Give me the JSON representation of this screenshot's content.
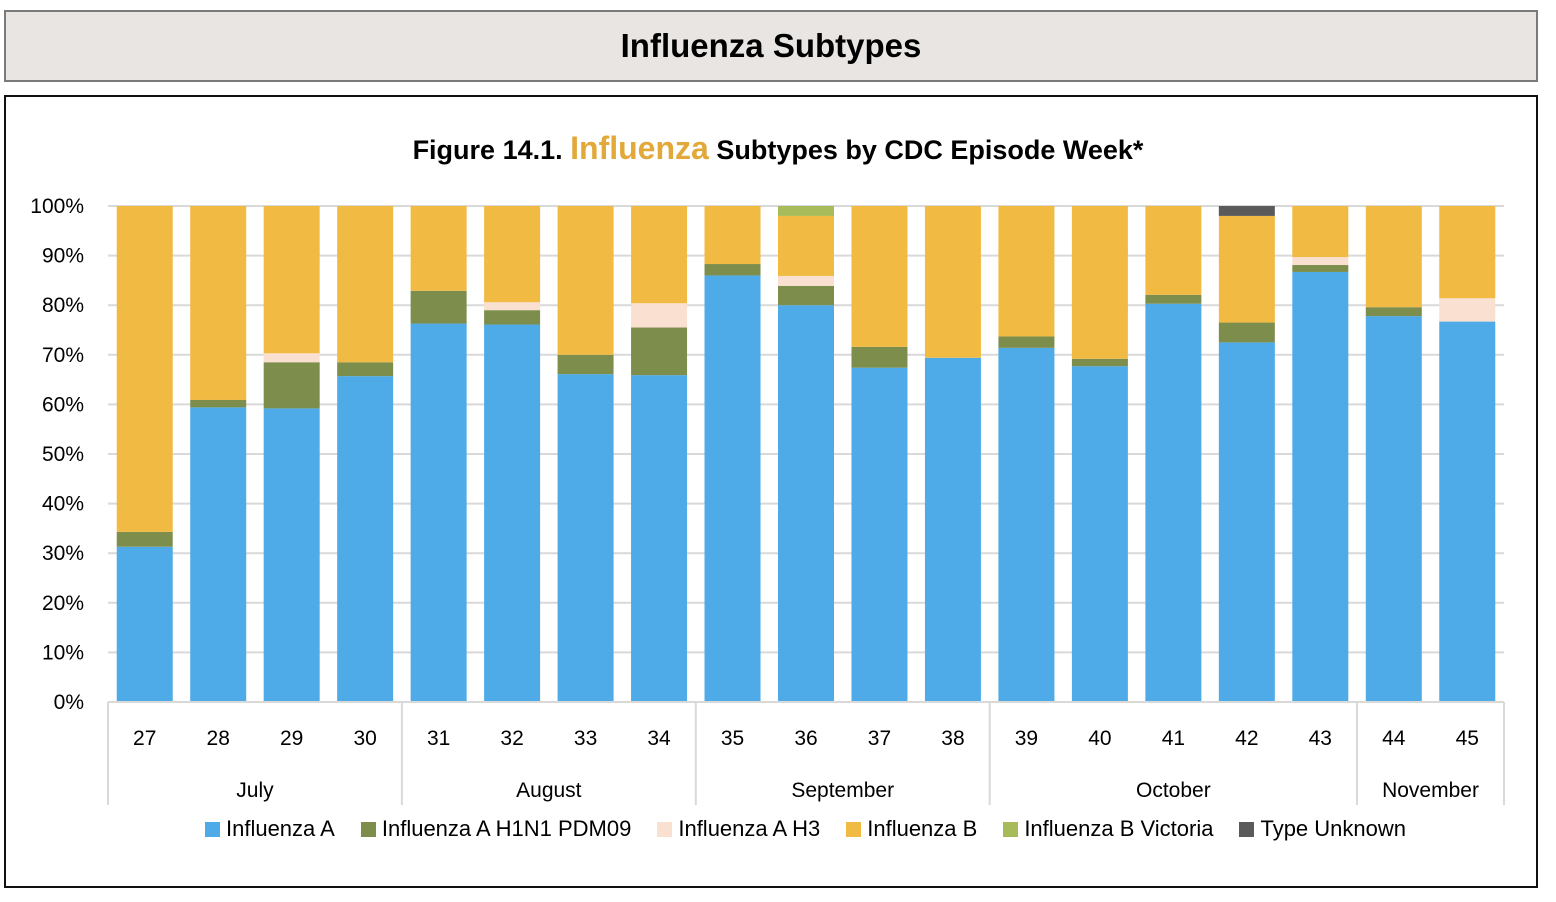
{
  "header": {
    "title": "Influenza Subtypes"
  },
  "chart_data": {
    "type": "bar",
    "stacked": true,
    "percent": true,
    "title_prefix": "Figure 14.1.",
    "title_accent": "Influenza",
    "title_suffix": "Subtypes by CDC Episode Week*",
    "title": "Figure 14.1. Influenza Subtypes by CDC Episode Week*",
    "xlabel": "",
    "ylabel": "",
    "ylim": [
      0,
      100
    ],
    "yticks": [
      "0%",
      "10%",
      "20%",
      "30%",
      "40%",
      "50%",
      "60%",
      "70%",
      "80%",
      "90%",
      "100%"
    ],
    "grid": true,
    "legend_position": "bottom",
    "accent_color": "#e2a93a",
    "categories": [
      "27",
      "28",
      "29",
      "30",
      "31",
      "32",
      "33",
      "34",
      "35",
      "36",
      "37",
      "38",
      "39",
      "40",
      "41",
      "42",
      "43",
      "44",
      "45"
    ],
    "month_groups": [
      {
        "label": "July",
        "weeks": [
          "27",
          "28",
          "29",
          "30"
        ]
      },
      {
        "label": "August",
        "weeks": [
          "31",
          "32",
          "33",
          "34"
        ]
      },
      {
        "label": "September",
        "weeks": [
          "35",
          "36",
          "37",
          "38"
        ]
      },
      {
        "label": "October",
        "weeks": [
          "39",
          "40",
          "41",
          "42",
          "43"
        ]
      },
      {
        "label": "November",
        "weeks": [
          "44",
          "45"
        ]
      }
    ],
    "series": [
      {
        "name": "Influenza A",
        "color": "#4eabe8",
        "values": [
          31.3,
          59.4,
          59.2,
          65.7,
          76.3,
          76.1,
          66.1,
          65.9,
          86.0,
          80.0,
          67.4,
          69.4,
          71.4,
          67.7,
          80.3,
          72.5,
          86.7,
          77.8,
          76.7
        ]
      },
      {
        "name": "Influenza A H1N1 PDM09",
        "color": "#7d8e4c",
        "values": [
          3.0,
          1.5,
          9.3,
          2.8,
          6.6,
          2.9,
          3.9,
          9.6,
          2.3,
          3.9,
          4.2,
          0,
          2.3,
          1.5,
          1.8,
          4.0,
          1.4,
          1.8,
          0
        ]
      },
      {
        "name": "Influenza A H3",
        "color": "#f9e0d0",
        "values": [
          0,
          0,
          1.8,
          0,
          0,
          1.6,
          0,
          4.9,
          0,
          2.0,
          0,
          0,
          0,
          0,
          0,
          0,
          1.6,
          0,
          4.7
        ]
      },
      {
        "name": "Influenza B",
        "color": "#f1ba43",
        "values": [
          65.7,
          39.1,
          29.7,
          31.5,
          17.1,
          19.4,
          30.0,
          19.6,
          11.7,
          12.1,
          28.4,
          30.6,
          26.3,
          30.8,
          17.9,
          21.5,
          10.3,
          20.4,
          18.6
        ]
      },
      {
        "name": "Influenza B Victoria",
        "color": "#a8bb5a",
        "values": [
          0,
          0,
          0,
          0,
          0,
          0,
          0,
          0,
          0,
          2.0,
          0,
          0,
          0,
          0,
          0,
          0,
          0,
          0,
          0
        ]
      },
      {
        "name": "Type Unknown",
        "color": "#5a5a5a",
        "values": [
          0,
          0,
          0,
          0,
          0,
          0,
          0,
          0,
          0,
          0,
          0,
          0,
          0,
          0,
          0,
          2.0,
          0,
          0,
          0
        ]
      }
    ]
  }
}
